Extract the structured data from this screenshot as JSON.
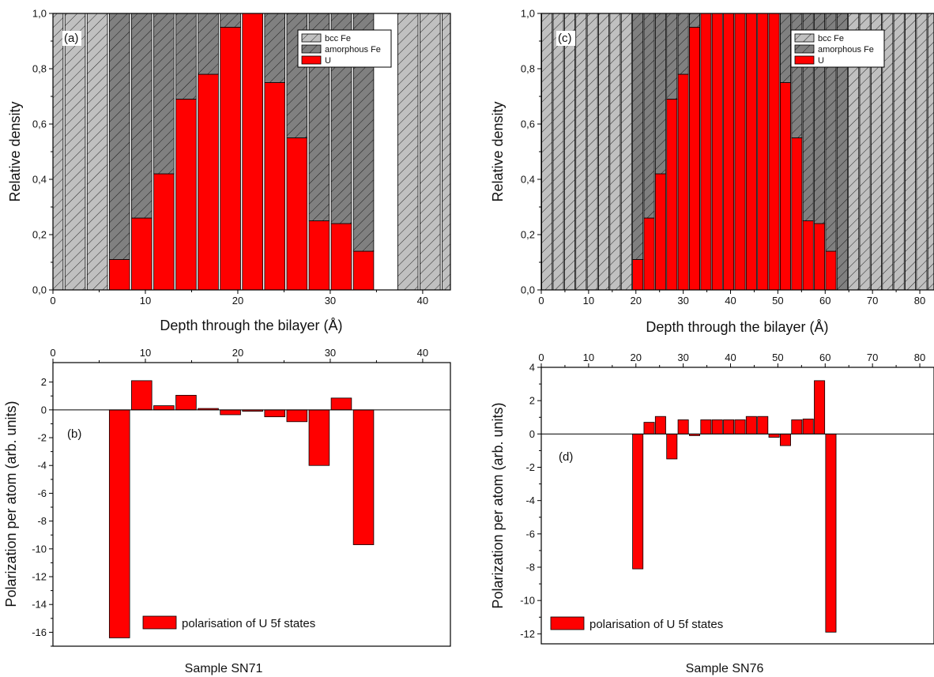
{
  "colors": {
    "bcc": "#c0c0c0",
    "amorphous": "#808080",
    "u": "#ff0000",
    "axis": "#000000"
  },
  "captions": {
    "left": "Sample SN71",
    "right": "Sample SN76"
  },
  "chart_data": [
    {
      "id": "a",
      "type": "bar",
      "stacked": true,
      "panel_label": "(a)",
      "xlabel": "Depth through the bilayer (Å)",
      "ylabel": "Relative density",
      "xlim": [
        0,
        43
      ],
      "ylim": [
        0,
        1.0
      ],
      "xticks": [
        0,
        10,
        20,
        30,
        40
      ],
      "yticks": [
        "0,0",
        "0,2",
        "0,4",
        "0,6",
        "0,8",
        "1,0"
      ],
      "ytick_values": [
        0,
        0.2,
        0.4,
        0.6,
        0.8,
        1.0
      ],
      "bar_width": 2.2,
      "x": [
        0,
        2.4,
        4.8,
        7.2,
        9.6,
        12.0,
        14.4,
        16.8,
        19.2,
        21.6,
        24.0,
        26.4,
        28.8,
        31.2,
        33.6,
        36.0,
        38.4,
        40.8,
        43.2
      ],
      "series": [
        {
          "name": "bcc Fe",
          "fill": "bcc",
          "hatch": true,
          "values": [
            1,
            1,
            1,
            0,
            0,
            0,
            0,
            0,
            0,
            0,
            0,
            0,
            0,
            0,
            0,
            0,
            1,
            1,
            1
          ]
        },
        {
          "name": "amorphous Fe",
          "fill": "amorphous",
          "hatch": true,
          "values": [
            0,
            0,
            0,
            0.89,
            0.74,
            0.58,
            0.31,
            0.22,
            0.05,
            0,
            0.25,
            0.45,
            0.75,
            0.76,
            0.86,
            0,
            0,
            0,
            0
          ]
        },
        {
          "name": "U",
          "fill": "u",
          "hatch": false,
          "values": [
            0,
            0,
            0,
            0.11,
            0.26,
            0.42,
            0.69,
            0.78,
            0.95,
            1.0,
            0.75,
            0.55,
            0.25,
            0.24,
            0.14,
            0,
            0,
            0,
            0
          ]
        }
      ],
      "legend": [
        "bcc Fe",
        "amorphous Fe",
        "U"
      ],
      "legend_position": "top-right"
    },
    {
      "id": "b",
      "type": "bar",
      "panel_label": "(b)",
      "xlabel": "",
      "ylabel": "Polarization per atom (arb. units)",
      "xlim": [
        0,
        43
      ],
      "ylim": [
        -17,
        3.4
      ],
      "xticks": [
        0,
        10,
        20,
        30,
        40
      ],
      "xaxis_position": "top",
      "yticks": [
        2,
        0,
        -2,
        -4,
        -6,
        -8,
        -10,
        -12,
        -14,
        -16
      ],
      "bar_width": 2.2,
      "x": [
        7.2,
        9.6,
        12.0,
        14.4,
        16.8,
        19.2,
        21.6,
        24.0,
        26.4,
        28.8,
        31.2,
        33.6
      ],
      "values": [
        -16.4,
        2.1,
        0.3,
        1.05,
        0.1,
        -0.35,
        -0.1,
        -0.5,
        -0.85,
        -4.0,
        0.85,
        -9.7
      ],
      "legend": [
        "polarisation of U 5f states"
      ],
      "legend_position": "bottom"
    },
    {
      "id": "c",
      "type": "bar",
      "stacked": true,
      "panel_label": "(c)",
      "xlabel": "Depth through the bilayer (Å)",
      "ylabel": "Relative density",
      "xlim": [
        0,
        83
      ],
      "ylim": [
        0,
        1.0
      ],
      "xticks": [
        0,
        10,
        20,
        30,
        40,
        50,
        60,
        70,
        80
      ],
      "yticks": [
        "0,0",
        "0,2",
        "0,4",
        "0,6",
        "0,8",
        "1,0"
      ],
      "ytick_values": [
        0,
        0.2,
        0.4,
        0.6,
        0.8,
        1.0
      ],
      "bar_width": 2.2,
      "x": [
        1.2,
        3.6,
        6.0,
        8.4,
        10.8,
        13.2,
        15.6,
        18.0,
        20.4,
        22.8,
        25.2,
        27.6,
        30.0,
        32.4,
        34.8,
        37.2,
        39.6,
        42.0,
        44.4,
        46.8,
        49.2,
        51.6,
        54.0,
        56.4,
        58.8,
        61.2,
        63.6,
        66.0,
        68.4,
        70.8,
        73.2,
        75.6,
        78.0,
        80.4,
        82.8
      ],
      "series": [
        {
          "name": "bcc Fe",
          "fill": "bcc",
          "hatch": true,
          "values": [
            1,
            1,
            1,
            1,
            1,
            1,
            1,
            1,
            0,
            0,
            0,
            0,
            0,
            0,
            0,
            0,
            0,
            0,
            0,
            0,
            0,
            0,
            0,
            0,
            0,
            0,
            0,
            1,
            1,
            1,
            1,
            1,
            1,
            1,
            1
          ]
        },
        {
          "name": "amorphous Fe",
          "fill": "amorphous",
          "hatch": true,
          "values": [
            0,
            0,
            0,
            0,
            0,
            0,
            0,
            0,
            0.89,
            0.74,
            0.58,
            0.31,
            0.22,
            0.05,
            0,
            0,
            0,
            0,
            0,
            0,
            0,
            0.25,
            0.45,
            0.75,
            0.76,
            0.86,
            1,
            0,
            0,
            0,
            0,
            0,
            0,
            0,
            0
          ]
        },
        {
          "name": "U",
          "fill": "u",
          "hatch": false,
          "values": [
            0,
            0,
            0,
            0,
            0,
            0,
            0,
            0,
            0.11,
            0.26,
            0.42,
            0.69,
            0.78,
            0.95,
            1,
            1,
            1,
            1,
            1,
            1,
            1,
            0.75,
            0.55,
            0.25,
            0.24,
            0.14,
            0,
            0,
            0,
            0,
            0,
            0,
            0,
            0,
            0
          ]
        }
      ],
      "legend": [
        "bcc Fe",
        "amorphous Fe",
        "U"
      ],
      "legend_position": "top-right"
    },
    {
      "id": "d",
      "type": "bar",
      "panel_label": "(d)",
      "xlabel": "",
      "ylabel": "Polarization per atom (arb. units)",
      "xlim": [
        0,
        83
      ],
      "ylim": [
        -12.6,
        4.0
      ],
      "xticks": [
        0,
        10,
        20,
        30,
        40,
        50,
        60,
        70,
        80
      ],
      "xaxis_position": "top",
      "yticks": [
        4,
        2,
        0,
        -2,
        -4,
        -6,
        -8,
        -10,
        -12
      ],
      "bar_width": 2.2,
      "x": [
        20.4,
        22.8,
        25.2,
        27.6,
        30.0,
        32.4,
        34.8,
        37.2,
        39.6,
        42.0,
        44.4,
        46.8,
        49.2,
        51.6,
        54.0,
        56.4,
        58.8,
        61.2,
        63.6
      ],
      "values": [
        -8.1,
        0.7,
        1.05,
        -1.5,
        0.85,
        -0.1,
        0.85,
        0.85,
        0.85,
        0.85,
        1.05,
        1.05,
        -0.2,
        -0.7,
        0.85,
        0.9,
        3.2,
        -11.9,
        0
      ],
      "legend": [
        "polarisation of U 5f states"
      ],
      "legend_position": "bottom"
    }
  ]
}
